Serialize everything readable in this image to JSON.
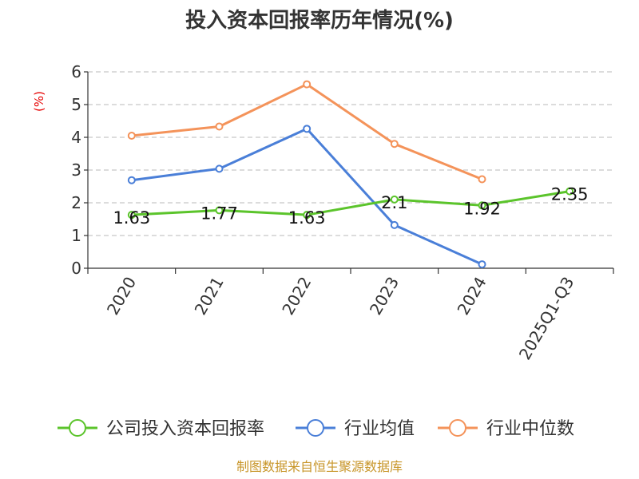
{
  "chart_data": {
    "type": "line",
    "title": "投入资本回报率历年情况(%)",
    "ylabel": "(%)",
    "categories": [
      "2020",
      "2021",
      "2022",
      "2023",
      "2024",
      "2025Q1-Q3"
    ],
    "ylim": [
      0,
      6
    ],
    "yticks": [
      "0",
      "1",
      "2",
      "3",
      "4",
      "5",
      "6"
    ],
    "grid": true,
    "legend_position": "bottom",
    "series": [
      {
        "name": "公司投入资本回报率",
        "color": "#5bc42b",
        "values": [
          1.63,
          1.77,
          1.63,
          2.1,
          1.92,
          2.35
        ],
        "labels": [
          "1.63",
          "1.77",
          "1.63",
          "2.1",
          "1.92",
          "2.35"
        ]
      },
      {
        "name": "行业均值",
        "color": "#4a7fd8",
        "values": [
          2.69,
          3.04,
          4.26,
          1.32,
          0.12,
          null
        ]
      },
      {
        "name": "行业中位数",
        "color": "#f4935a",
        "values": [
          4.05,
          4.33,
          5.62,
          3.8,
          2.72,
          null
        ]
      }
    ],
    "source": "制图数据来自恒生聚源数据库"
  }
}
